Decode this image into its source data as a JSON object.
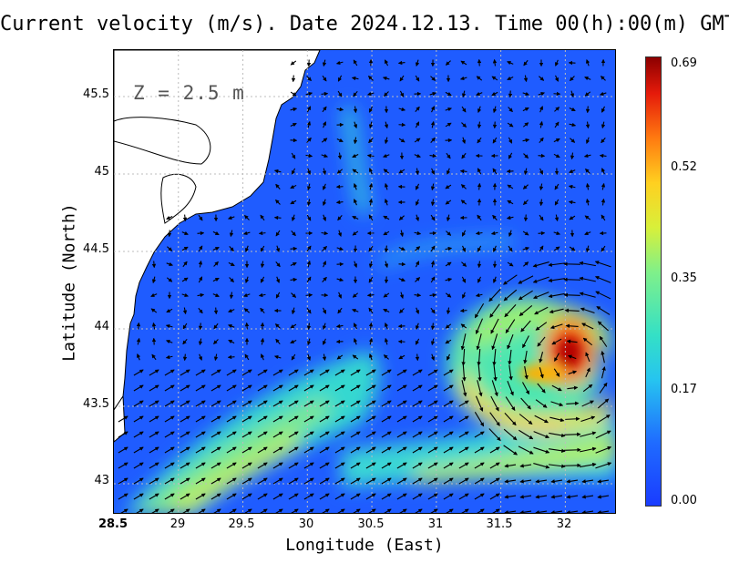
{
  "title": "Current velocity (m/s). Date 2024.12.13. Time 00(h):00(m) GMT",
  "depth_label": "Z = 2.5 m",
  "x_axis": {
    "label": "Longitude (East)",
    "ticks": [
      "28.5",
      "29",
      "29.5",
      "30",
      "30.5",
      "31",
      "31.5",
      "32"
    ],
    "range": [
      28.5,
      32.4
    ]
  },
  "y_axis": {
    "label": "Latitude (North)",
    "ticks": [
      "45.5",
      "45",
      "44.5",
      "44",
      "43.5",
      "43"
    ],
    "range": [
      42.8,
      45.8
    ]
  },
  "colorbar": {
    "ticks": [
      "0.69",
      "0.52",
      "0.35",
      "0.17",
      "0.00"
    ],
    "min": 0.0,
    "max": 0.69,
    "colors": [
      "#1a3cff",
      "#26c4f0",
      "#7ff08a",
      "#ffd020",
      "#e51a0a",
      "#8c0000"
    ]
  },
  "map": {
    "sea_color": "#1f5cff",
    "land_color": "#ffffff",
    "coastline_color": "#000000",
    "gridlines": true,
    "vector_color": "#000000"
  }
}
